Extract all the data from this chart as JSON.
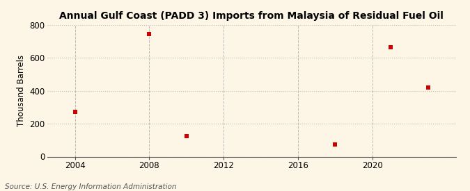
{
  "title": "Annual Gulf Coast (PADD 3) Imports from Malaysia of Residual Fuel Oil",
  "ylabel": "Thousand Barrels",
  "source": "Source: U.S. Energy Information Administration",
  "data_points": [
    {
      "year": 2004,
      "value": 270
    },
    {
      "year": 2008,
      "value": 745
    },
    {
      "year": 2010,
      "value": 125
    },
    {
      "year": 2018,
      "value": 75
    },
    {
      "year": 2021,
      "value": 665
    },
    {
      "year": 2023,
      "value": 420
    }
  ],
  "marker_color": "#cc0000",
  "marker_size": 5,
  "background_color": "#fdf5e6",
  "grid_color": "#bbbbbb",
  "xlim": [
    2002.5,
    2024.5
  ],
  "ylim": [
    0,
    800
  ],
  "yticks": [
    0,
    200,
    400,
    600,
    800
  ],
  "xticks": [
    2004,
    2008,
    2012,
    2016,
    2020
  ],
  "title_fontsize": 10,
  "label_fontsize": 8.5,
  "tick_fontsize": 8.5,
  "source_fontsize": 7.5
}
